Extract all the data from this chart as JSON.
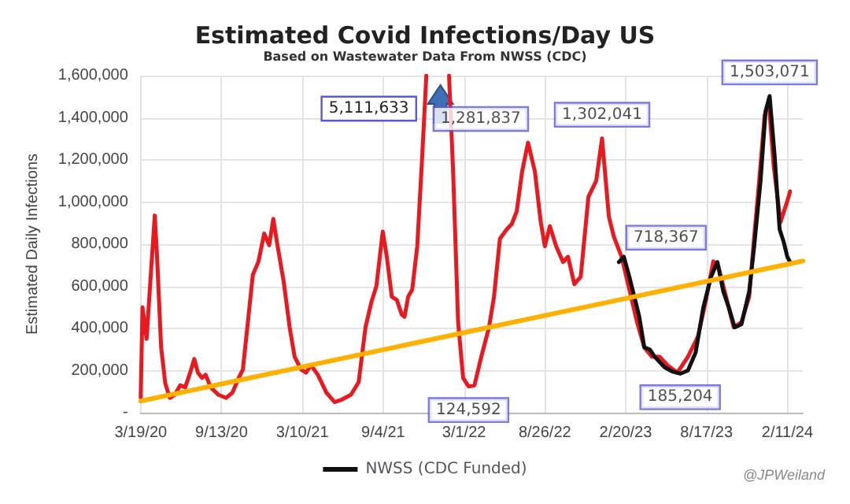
{
  "chart_data": {
    "type": "line",
    "title": "Estimated Covid Infections/Day US",
    "subtitle": "Based on Wastewater Data From NWSS (CDC)",
    "ylabel": "Estimated Daily Infections",
    "xlim": [
      "2020-03-19",
      "2024-03-16"
    ],
    "xticks": [
      {
        "value": "2020-03-19",
        "label": "3/19/20"
      },
      {
        "value": "2020-09-13",
        "label": "9/13/20"
      },
      {
        "value": "2021-03-10",
        "label": "3/10/21"
      },
      {
        "value": "2021-09-04",
        "label": "9/4/21"
      },
      {
        "value": "2022-03-01",
        "label": "3/1/22"
      },
      {
        "value": "2022-08-26",
        "label": "8/26/22"
      },
      {
        "value": "2023-02-20",
        "label": "2/20/23"
      },
      {
        "value": "2023-08-17",
        "label": "8/17/23"
      },
      {
        "value": "2024-02-11",
        "label": "2/11/24"
      }
    ],
    "ylim": [
      0,
      1600000
    ],
    "yticks": [
      {
        "value": 0,
        "label": "-"
      },
      {
        "value": 200000,
        "label": "200,000"
      },
      {
        "value": 400000,
        "label": "400,000"
      },
      {
        "value": 600000,
        "label": "600,000"
      },
      {
        "value": 800000,
        "label": "800,000"
      },
      {
        "value": 1000000,
        "label": "1,000,000"
      },
      {
        "value": 1200000,
        "label": "1,200,000"
      },
      {
        "value": 1400000,
        "label": "1,400,000"
      },
      {
        "value": 1600000,
        "label": "1,600,000"
      }
    ],
    "grid": true,
    "legend": "bottom",
    "marker": "none",
    "line_style": "solid",
    "series": [
      {
        "color": "#e8191f",
        "x": [
          "2020-03-19",
          "2020-03-23",
          "2020-04-01",
          "2020-04-07",
          "2020-04-19",
          "2020-04-24",
          "2020-05-03",
          "2020-05-12",
          "2020-05-22",
          "2020-06-02",
          "2020-06-14",
          "2020-06-25",
          "2020-07-06",
          "2020-07-15",
          "2020-07-23",
          "2020-08-01",
          "2020-08-09",
          "2020-08-20",
          "2020-09-06",
          "2020-09-23",
          "2020-10-07",
          "2020-10-21",
          "2020-10-30",
          "2020-11-10",
          "2020-11-21",
          "2020-12-03",
          "2020-12-16",
          "2020-12-27",
          "2021-01-05",
          "2021-01-13",
          "2021-01-28",
          "2021-02-10",
          "2021-02-21",
          "2021-03-07",
          "2021-03-18",
          "2021-03-29",
          "2021-04-13",
          "2021-05-02",
          "2021-05-20",
          "2021-06-03",
          "2021-06-25",
          "2021-07-12",
          "2021-07-27",
          "2021-08-09",
          "2021-08-20",
          "2021-09-03",
          "2021-09-12",
          "2021-09-23",
          "2021-10-04",
          "2021-10-15",
          "2021-10-21",
          "2021-10-29",
          "2021-11-07",
          "2021-11-18",
          "2021-11-29",
          "2021-12-08",
          "2022-01-08",
          "2022-01-27",
          "2022-02-05",
          "2022-02-16",
          "2022-02-27",
          "2022-03-11",
          "2022-03-24",
          "2022-04-08",
          "2022-04-25",
          "2022-05-06",
          "2022-05-19",
          "2022-06-03",
          "2022-06-14",
          "2022-06-25",
          "2022-07-07",
          "2022-07-20",
          "2022-08-04",
          "2022-08-17",
          "2022-08-26",
          "2022-09-06",
          "2022-09-20",
          "2022-10-05",
          "2022-10-16",
          "2022-10-30",
          "2022-11-13",
          "2022-11-30",
          "2022-12-17",
          "2022-12-30",
          "2023-01-14",
          "2023-01-25",
          "2023-02-11",
          "2023-02-28",
          "2023-03-17",
          "2023-04-02",
          "2023-04-19",
          "2023-05-06",
          "2023-05-23",
          "2023-06-14",
          "2023-07-07",
          "2023-07-29",
          "2023-08-15",
          "2023-09-01",
          "2023-09-12",
          "2023-09-29",
          "2023-10-16",
          "2023-11-02",
          "2023-11-19",
          "2023-11-30",
          "2023-12-11",
          "2023-12-23",
          "2024-01-01",
          "2024-01-12",
          "2024-01-27",
          "2024-02-11",
          "2024-02-17"
        ],
        "values": [
          70000,
          500000,
          350000,
          550000,
          936000,
          740000,
          310000,
          140000,
          70000,
          85000,
          130000,
          120000,
          190000,
          255000,
          190000,
          165000,
          180000,
          120000,
          85000,
          70000,
          95000,
          165000,
          205000,
          430000,
          655000,
          715000,
          850000,
          795000,
          920000,
          810000,
          620000,
          405000,
          265000,
          205000,
          190000,
          225000,
          180000,
          95000,
          50000,
          60000,
          85000,
          145000,
          405000,
          525000,
          600000,
          860000,
          740000,
          550000,
          535000,
          465000,
          455000,
          550000,
          585000,
          790000,
          1220000,
          1600000,
          null,
          1600000,
          1145000,
          430000,
          165000,
          124592,
          130000,
          265000,
          405000,
          550000,
          825000,
          870000,
          895000,
          955000,
          1145000,
          1281837,
          1145000,
          905000,
          790000,
          885000,
          790000,
          715000,
          740000,
          610000,
          645000,
          1025000,
          1100000,
          1302041,
          930000,
          835000,
          740000,
          585000,
          430000,
          310000,
          265000,
          265000,
          225000,
          190000,
          265000,
          360000,
          525000,
          718367,
          695000,
          550000,
          405000,
          430000,
          550000,
          835000,
          1100000,
          1410000,
          1480000,
          1170000,
          905000,
          1005000,
          1050000
        ]
      },
      {
        "name": "NWSS (CDC Funded)",
        "color": "#111111",
        "x": [
          "2023-02-05",
          "2023-02-16",
          "2023-02-28",
          "2023-03-14",
          "2023-03-22",
          "2023-04-02",
          "2023-04-14",
          "2023-04-25",
          "2023-05-17",
          "2023-06-03",
          "2023-06-20",
          "2023-07-07",
          "2023-07-24",
          "2023-08-10",
          "2023-08-27",
          "2023-09-10",
          "2023-09-23",
          "2023-10-05",
          "2023-10-18",
          "2023-11-02",
          "2023-11-19",
          "2023-11-30",
          "2023-12-14",
          "2023-12-25",
          "2024-01-03",
          "2024-01-14",
          "2024-01-25",
          "2024-02-03",
          "2024-02-11",
          "2024-02-17"
        ],
        "values": [
          715000,
          740000,
          645000,
          525000,
          455000,
          310000,
          300000,
          265000,
          215000,
          195000,
          185204,
          200000,
          285000,
          500000,
          645000,
          715000,
          575000,
          500000,
          405000,
          420000,
          575000,
          790000,
          1100000,
          1430000,
          1503071,
          1220000,
          870000,
          810000,
          740000,
          715000
        ]
      },
      {
        "type": "line",
        "color": "#ffb000",
        "x": [
          "2020-03-19",
          "2024-03-16"
        ],
        "values": [
          55000,
          720000
        ]
      }
    ],
    "annotations": [
      {
        "text": "124,592",
        "x": "2022-03-11",
        "y": 124592
      },
      {
        "text": "1,281,837",
        "x": "2022-07-20",
        "y": 1281837
      },
      {
        "text": "1,302,041",
        "x": "2022-12-30",
        "y": 1302041
      },
      {
        "text": "185,204",
        "x": "2023-06-20",
        "y": 185204
      },
      {
        "text": "718,367",
        "x": "2023-09-01",
        "y": 718367
      },
      {
        "text": "1,503,071",
        "x": "2024-01-03",
        "y": 1503071
      },
      "5,111,633",
      "@JPWeiland"
    ]
  }
}
